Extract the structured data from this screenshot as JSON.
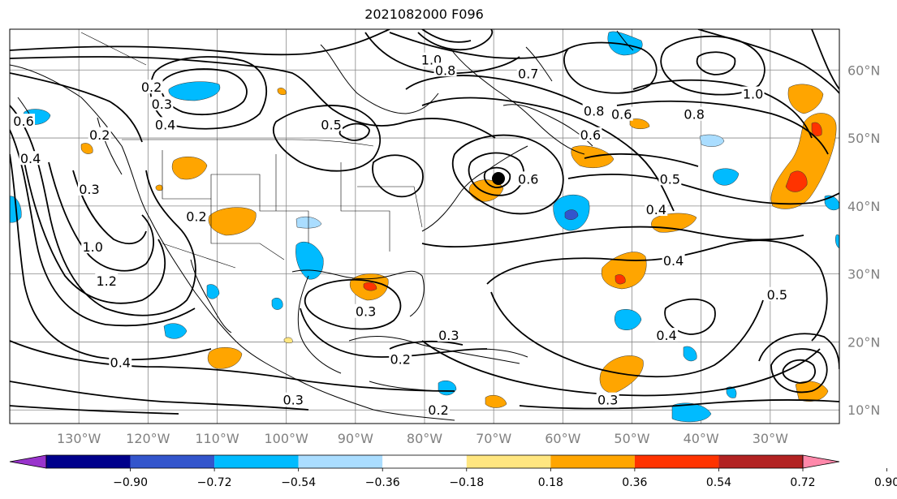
{
  "title": "2021082000 F096",
  "map": {
    "lon_labels": [
      "130°W",
      "120°W",
      "110°W",
      "100°W",
      "90°W",
      "80°W",
      "70°W",
      "60°W",
      "50°W",
      "40°W",
      "30°W"
    ],
    "lat_labels": [
      "60°N",
      "50°N",
      "40°N",
      "30°N",
      "20°N",
      "10°N"
    ],
    "contour_labels": [
      {
        "text": "0.2",
        "lon": -119.5,
        "lat": 57.5
      },
      {
        "text": "0.3",
        "lon": -118,
        "lat": 55
      },
      {
        "text": "0.4",
        "lon": -117.5,
        "lat": 52
      },
      {
        "text": "0.5",
        "lon": -93.5,
        "lat": 52
      },
      {
        "text": "0.2",
        "lon": -127,
        "lat": 50.5
      },
      {
        "text": "0.6",
        "lon": -138,
        "lat": 52.5
      },
      {
        "text": "0.4",
        "lon": -137,
        "lat": 47
      },
      {
        "text": "1.0",
        "lon": -79,
        "lat": 61.5
      },
      {
        "text": "0.8",
        "lon": -77,
        "lat": 60
      },
      {
        "text": "0.7",
        "lon": -65,
        "lat": 59.5
      },
      {
        "text": "0.8",
        "lon": -55.5,
        "lat": 54
      },
      {
        "text": "0.6",
        "lon": -51.5,
        "lat": 53.5
      },
      {
        "text": "0.8",
        "lon": -41,
        "lat": 53.5
      },
      {
        "text": "1.0",
        "lon": -32.5,
        "lat": 56.5
      },
      {
        "text": "0.6",
        "lon": -56,
        "lat": 50.5
      },
      {
        "text": "0.6",
        "lon": -65,
        "lat": 44
      },
      {
        "text": "0.5",
        "lon": -44.5,
        "lat": 44
      },
      {
        "text": "0.4",
        "lon": -46.5,
        "lat": 39.5
      },
      {
        "text": "0.4",
        "lon": -44,
        "lat": 32
      },
      {
        "text": "0.3",
        "lon": -128.5,
        "lat": 42.5
      },
      {
        "text": "0.2",
        "lon": -113,
        "lat": 38.5
      },
      {
        "text": "1.0",
        "lon": -128,
        "lat": 34
      },
      {
        "text": "1.2",
        "lon": -126,
        "lat": 29
      },
      {
        "text": "0.3",
        "lon": -88.5,
        "lat": 24.5
      },
      {
        "text": "0.2",
        "lon": -83.5,
        "lat": 17.5
      },
      {
        "text": "0.3",
        "lon": -76.5,
        "lat": 21
      },
      {
        "text": "0.4",
        "lon": -124,
        "lat": 17
      },
      {
        "text": "0.3",
        "lon": -99,
        "lat": 11.5
      },
      {
        "text": "0.2",
        "lon": -78,
        "lat": 10
      },
      {
        "text": "0.3",
        "lon": -53.5,
        "lat": 11.5
      },
      {
        "text": "0.4",
        "lon": -45,
        "lat": 21
      },
      {
        "text": "0.5",
        "lon": -29,
        "lat": 27
      }
    ]
  },
  "colorbar": {
    "tick_labels": [
      "−0.90",
      "−0.72",
      "−0.54",
      "−0.36",
      "−0.18",
      "0.18",
      "0.36",
      "0.54",
      "0.72",
      "0.90"
    ],
    "colors": [
      "#9933cc",
      "#00008b",
      "#3355cc",
      "#00bbff",
      "#aaddff",
      "#ffffff",
      "#ffe680",
      "#ffa500",
      "#ff3300",
      "#b22222",
      "#ff88aa"
    ]
  }
}
